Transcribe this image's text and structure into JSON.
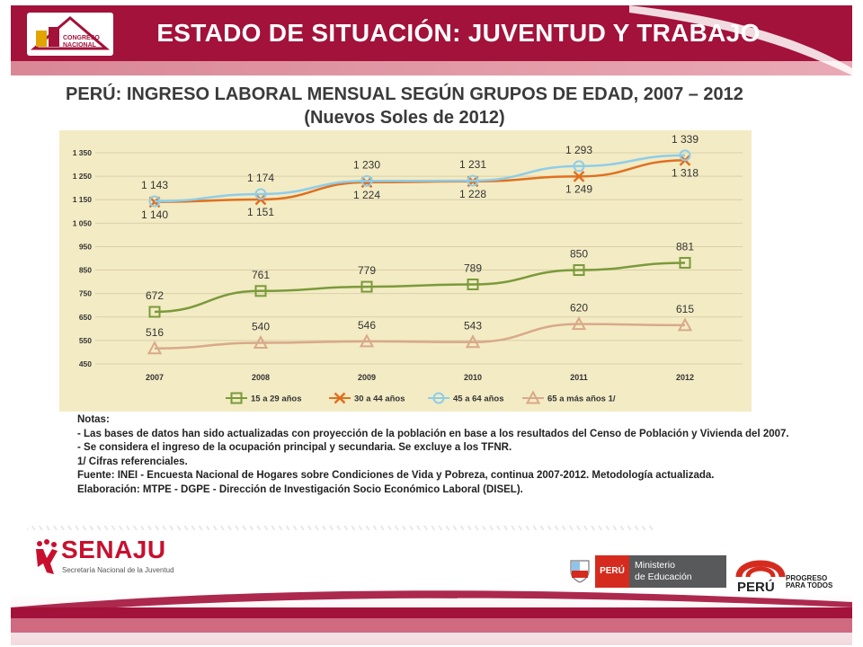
{
  "header": {
    "title": "ESTADO DE SITUACIÓN: JUVENTUD Y TRABAJO",
    "logo_icon": "congreso-nacional-juventudes-logo"
  },
  "chart_data": {
    "type": "line",
    "title": "PERÚ: INGRESO LABORAL MENSUAL SEGÚN GRUPOS DE EDAD, 2007 – 2012",
    "subtitle": "(Nuevos Soles de 2012)",
    "categories": [
      "2007",
      "2008",
      "2009",
      "2010",
      "2011",
      "2012"
    ],
    "y_ticks": [
      "1 350",
      "1 250",
      "1 150",
      "1 050",
      "950",
      "850",
      "750",
      "650",
      "550",
      "450"
    ],
    "ylim": [
      450,
      1350
    ],
    "grid": true,
    "legend_position": "bottom",
    "background_color": "#f3ebc4",
    "series": [
      {
        "name": "15 a 29 años",
        "color": "#7a9a3a",
        "marker": "square",
        "values": [
          672,
          761,
          779,
          789,
          850,
          881
        ],
        "labels": [
          "672",
          "761",
          "779",
          "789",
          "850",
          "881"
        ]
      },
      {
        "name": "30 a 44 años",
        "color": "#e07020",
        "marker": "x",
        "values": [
          1140,
          1151,
          1224,
          1228,
          1249,
          1318
        ],
        "labels": [
          "1 140",
          "1 151",
          "1 224",
          "1 228",
          "1 249",
          "1 318"
        ]
      },
      {
        "name": "45 a 64 años",
        "color": "#8fcde8",
        "marker": "circle",
        "values": [
          1143,
          1174,
          1230,
          1231,
          1293,
          1339
        ],
        "labels": [
          "1 143",
          "1 174",
          "1 230",
          "1 231",
          "1 293",
          "1 339"
        ]
      },
      {
        "name": "65 a más años 1/",
        "color": "#d8a98a",
        "marker": "triangle",
        "values": [
          516,
          540,
          546,
          543,
          620,
          615
        ],
        "labels": [
          "516",
          "540",
          "546",
          "543",
          "620",
          "615"
        ]
      }
    ]
  },
  "notes": {
    "heading": "Notas:",
    "line1": "- Las bases de datos han sido actualizadas con proyección de la población en base a los resultados del Censo de Población y Vivienda del 2007.",
    "line2": "- Se considera el ingreso de la ocupación principal y secundaria. Se excluye a los TFNR.",
    "line3": "1/ Cifras referenciales.",
    "source": "Fuente: INEI - Encuesta Nacional de Hogares sobre Condiciones de Vida y Pobreza, continua 2007-2012. Metodología actualizada.",
    "elaboration": "Elaboración: MTPE - DGPE - Dirección de Investigación Socio Económico Laboral (DISEL)."
  },
  "footer": {
    "senaju_name": "SENAJU",
    "senaju_sub": "Secretaría Nacional de la Juventud",
    "peru_flag_label": "PERÚ",
    "ministry_line1": "Ministerio",
    "ministry_line2": "de Educación",
    "progreso_line1": "PROGRESO",
    "progreso_line2": "PARA TODOS"
  }
}
